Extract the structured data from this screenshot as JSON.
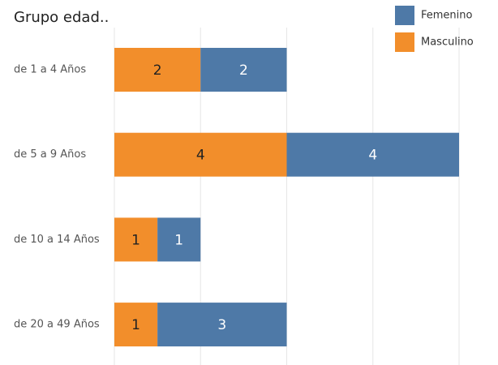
{
  "chart_data": {
    "type": "stacked-bar-horizontal",
    "title": "Grupo edad..",
    "categories": [
      "de 1 a 4 Años",
      "de 5 a 9 Años",
      "de 10 a 14 Años",
      "de 20 a 49 Años"
    ],
    "series": [
      {
        "name": "Femenino",
        "color": "#4e79a7",
        "values": [
          2,
          4,
          1,
          3
        ]
      },
      {
        "name": "Masculino",
        "color": "#f28e2b",
        "values": [
          2,
          4,
          1,
          1
        ]
      }
    ],
    "xlim": [
      0,
      8
    ],
    "xticks": [
      0,
      2,
      4,
      6,
      8
    ],
    "grid": true,
    "legend": "top-right"
  }
}
